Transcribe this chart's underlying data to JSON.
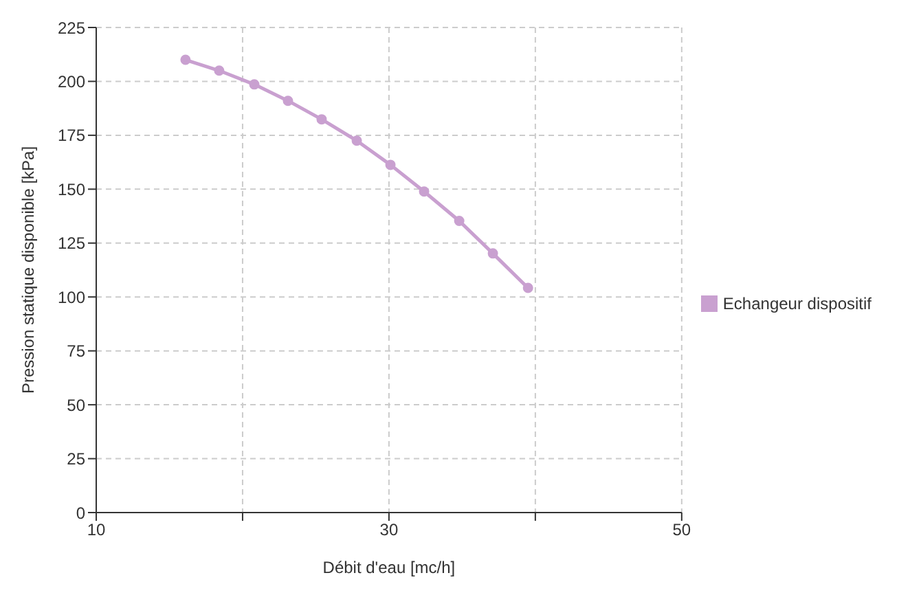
{
  "chart_data": {
    "type": "line",
    "xlabel": "Débit d'eau [mc/h]",
    "ylabel": "Pression statique disponible [kPa]",
    "x": [
      16.1,
      18.4,
      20.8,
      23.1,
      25.4,
      27.8,
      30.1,
      32.4,
      34.8,
      37.1,
      39.5
    ],
    "series": [
      {
        "name": "Echangeur dispositif",
        "color": "#c9a0d0",
        "values": [
          210,
          205,
          198.6,
          191,
          182.4,
          172.5,
          161.3,
          148.9,
          135.3,
          120.2,
          104.2
        ]
      }
    ],
    "xlim": [
      10,
      50
    ],
    "xticks": [
      10,
      {
        "value": 20,
        "label": null
      },
      30,
      {
        "value": 40,
        "label": null
      },
      50
    ],
    "ylim": [
      0,
      225
    ],
    "yticks": [
      0,
      25,
      50,
      75,
      100,
      125,
      150,
      175,
      200,
      225
    ],
    "grid": true,
    "legend": "right",
    "marker": "circle",
    "line_style": "solid"
  }
}
